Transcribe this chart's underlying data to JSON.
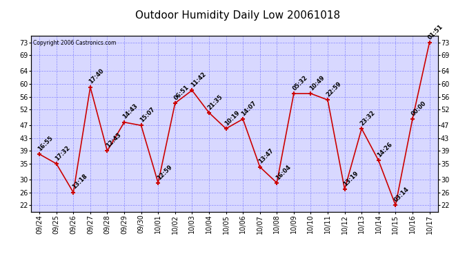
{
  "title": "Outdoor Humidity Daily Low 20061018",
  "copyright": "Copyright 2006 Castronics.com",
  "x_labels": [
    "09/24",
    "09/25",
    "09/26",
    "09/27",
    "09/28",
    "09/29",
    "09/30",
    "10/01",
    "10/02",
    "10/03",
    "10/04",
    "10/05",
    "10/06",
    "10/07",
    "10/08",
    "10/09",
    "10/10",
    "10/11",
    "10/12",
    "10/13",
    "10/14",
    "10/15",
    "10/16",
    "10/17"
  ],
  "y_values": [
    38,
    35,
    26,
    59,
    39,
    48,
    47,
    29,
    54,
    58,
    51,
    46,
    49,
    34,
    29,
    57,
    57,
    55,
    27,
    46,
    36,
    22,
    49,
    73
  ],
  "point_labels": [
    "16:55",
    "17:32",
    "13:18",
    "17:40",
    "12:43",
    "14:43",
    "15:07",
    "12:59",
    "06:51",
    "11:42",
    "21:35",
    "10:19",
    "14:07",
    "13:47",
    "16:04",
    "05:32",
    "10:49",
    "22:59",
    "13:19",
    "23:32",
    "14:26",
    "03:14",
    "00:00",
    "01:51"
  ],
  "y_ticks": [
    22,
    26,
    30,
    35,
    39,
    43,
    47,
    52,
    56,
    60,
    64,
    69,
    73
  ],
  "ylim": [
    20,
    75
  ],
  "line_color": "#cc0000",
  "marker_color": "#cc0000",
  "grid_color": "#8888ff",
  "bg_color": "#ffffff",
  "plot_bg_color": "#d8d8ff",
  "border_color": "#000000",
  "title_fontsize": 11,
  "tick_fontsize": 7,
  "point_label_fontsize": 6
}
